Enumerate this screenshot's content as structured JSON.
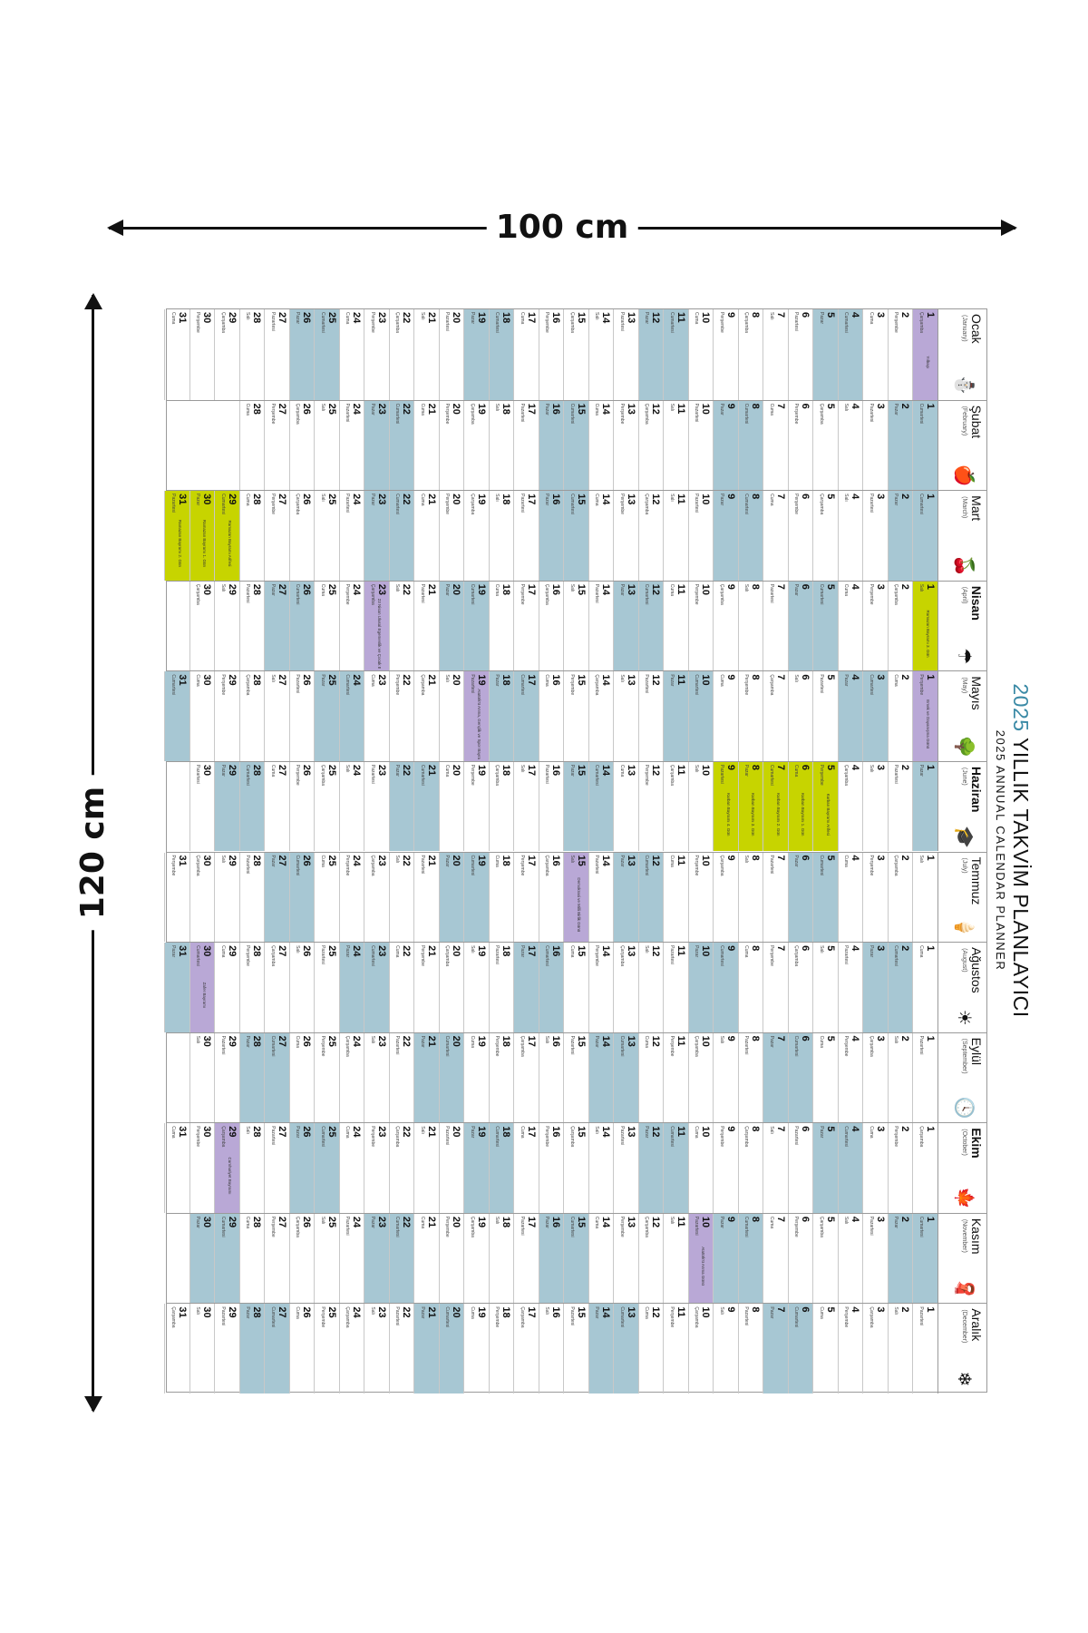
{
  "dimensions": {
    "width_label": "100 cm",
    "height_label": "120 cm"
  },
  "title": {
    "year": "2025",
    "main": "YILLIK TAKVİM PLANLAYICI",
    "sub": "2025 ANNUAL CALENDAR PLANNER"
  },
  "colors": {
    "weekend": "#a7c7d3",
    "special_day": "#b9a8d6",
    "religious_holiday": "#c7d400"
  },
  "months": [
    {
      "name": "Ocak",
      "sub": "(January)",
      "icon": "snowman-icon",
      "glyph": "⛄",
      "days": 31,
      "start": 3,
      "special": {
        "1": {
          "kind": "lav",
          "label": "Yılbaşı"
        }
      }
    },
    {
      "name": "Şubat",
      "sub": "(February)",
      "icon": "apple-icon",
      "glyph": "🍎",
      "days": 28,
      "start": 6,
      "special": {}
    },
    {
      "name": "Mart",
      "sub": "(March)",
      "icon": "cherry-icon",
      "glyph": "🍒",
      "days": 31,
      "start": 6,
      "special": {
        "29": {
          "kind": "lime",
          "label": "Ramazan Bayramı Arifesi"
        },
        "30": {
          "kind": "lime",
          "label": "Ramazan Bayramı 1. Gün"
        },
        "31": {
          "kind": "lime",
          "label": "Ramazan Bayramı 2. Gün"
        }
      }
    },
    {
      "name": "Nisan",
      "sub": "(April)",
      "icon": "umbrella-icon",
      "glyph": "☂",
      "days": 30,
      "start": 2,
      "special": {
        "1": {
          "kind": "lime",
          "label": "Ramazan Bayramı 3. Gün"
        },
        "23": {
          "kind": "lav",
          "label": "23 Nisan Ulusal Egemenlik ve Çocuk Bayramı"
        }
      }
    },
    {
      "name": "Mayıs",
      "sub": "(May)",
      "icon": "tree-icon",
      "glyph": "🌳",
      "days": 31,
      "start": 4,
      "special": {
        "1": {
          "kind": "lav",
          "label": "Emek ve Dayanışma Günü"
        },
        "19": {
          "kind": "lav",
          "label": "Atatürk'ü Anma, Gençlik ve Spor Bayramı"
        }
      }
    },
    {
      "name": "Haziran",
      "sub": "(June)",
      "icon": "graduation-cap-icon",
      "glyph": "🎓",
      "days": 30,
      "start": 0,
      "special": {
        "5": {
          "kind": "lime",
          "label": "Kurban Bayramı Arifesi"
        },
        "6": {
          "kind": "lime",
          "label": "Kurban Bayramı 1. Gün"
        },
        "7": {
          "kind": "lime",
          "label": "Kurban Bayramı 2. Gün"
        },
        "8": {
          "kind": "lime",
          "label": "Kurban Bayramı 3. Gün"
        },
        "9": {
          "kind": "lime",
          "label": "Kurban Bayramı 4. Gün"
        }
      }
    },
    {
      "name": "Temmuz",
      "sub": "(July)",
      "icon": "ice-cream-icon",
      "glyph": "🍦",
      "days": 31,
      "start": 2,
      "special": {
        "15": {
          "kind": "lav",
          "label": "Demokrasi ve Milli Birlik Günü"
        }
      }
    },
    {
      "name": "Ağustos",
      "sub": "(August)",
      "icon": "sun-icon",
      "glyph": "☀",
      "days": 31,
      "start": 5,
      "special": {
        "30": {
          "kind": "lav",
          "label": "Zafer Bayramı"
        }
      }
    },
    {
      "name": "Eylül",
      "sub": "(September)",
      "icon": "clock-icon",
      "glyph": "🕓",
      "days": 30,
      "start": 1,
      "special": {}
    },
    {
      "name": "Ekim",
      "sub": "(October)",
      "icon": "maple-leaf-icon",
      "glyph": "🍁",
      "days": 31,
      "start": 3,
      "special": {
        "29": {
          "kind": "lav",
          "label": "Cumhuriyet Bayramı"
        }
      }
    },
    {
      "name": "Kasım",
      "sub": "(November)",
      "icon": "scarf-icon",
      "glyph": "🧣",
      "days": 30,
      "start": 6,
      "special": {
        "10": {
          "kind": "lav",
          "label": "Atatürk'ü Anma Günü"
        }
      }
    },
    {
      "name": "Aralık",
      "sub": "(December)",
      "icon": "snowflake-icon",
      "glyph": "❄",
      "days": 31,
      "start": 1,
      "special": {}
    }
  ],
  "weekdays": [
    "Pazar",
    "Pazartesi",
    "Salı",
    "Çarşamba",
    "Perşembe",
    "Cuma",
    "Cumartesi"
  ]
}
